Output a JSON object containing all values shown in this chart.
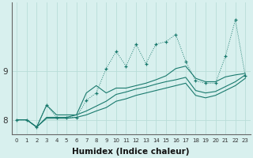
{
  "xlabel": "Humidex (Indice chaleur)",
  "ylabel": "",
  "bg_color": "#d8f0ee",
  "line_color": "#1a7a6e",
  "grid_color": "#b8ddd8",
  "x": [
    0,
    1,
    2,
    3,
    4,
    5,
    6,
    7,
    8,
    9,
    10,
    11,
    12,
    13,
    14,
    15,
    16,
    17,
    18,
    19,
    20,
    21,
    22,
    23
  ],
  "jagged_y": [
    8.0,
    8.0,
    7.85,
    8.3,
    8.05,
    8.05,
    8.05,
    8.4,
    8.55,
    9.05,
    9.4,
    9.1,
    9.55,
    9.15,
    9.55,
    9.6,
    9.75,
    9.2,
    8.8,
    8.75,
    8.75,
    9.3,
    10.05,
    8.9
  ],
  "line_a_y": [
    8.0,
    8.0,
    7.85,
    8.3,
    8.1,
    8.1,
    8.1,
    8.55,
    8.7,
    8.55,
    8.65,
    8.65,
    8.7,
    8.75,
    8.82,
    8.9,
    9.05,
    9.1,
    8.85,
    8.78,
    8.78,
    8.88,
    8.92,
    8.95
  ],
  "line_b_y": [
    8.0,
    8.0,
    7.85,
    8.05,
    8.05,
    8.05,
    8.1,
    8.18,
    8.28,
    8.38,
    8.52,
    8.57,
    8.63,
    8.67,
    8.73,
    8.78,
    8.82,
    8.87,
    8.6,
    8.55,
    8.58,
    8.68,
    8.78,
    8.92
  ],
  "line_c_y": [
    8.0,
    8.0,
    7.85,
    8.03,
    8.03,
    8.03,
    8.05,
    8.1,
    8.18,
    8.25,
    8.38,
    8.43,
    8.5,
    8.55,
    8.6,
    8.65,
    8.7,
    8.75,
    8.5,
    8.45,
    8.5,
    8.6,
    8.7,
    8.85
  ],
  "ylim": [
    7.7,
    10.4
  ],
  "yticks": [
    8,
    9
  ],
  "xticks": [
    0,
    1,
    2,
    3,
    4,
    5,
    6,
    7,
    8,
    9,
    10,
    11,
    12,
    13,
    14,
    15,
    16,
    17,
    18,
    19,
    20,
    21,
    22,
    23
  ]
}
